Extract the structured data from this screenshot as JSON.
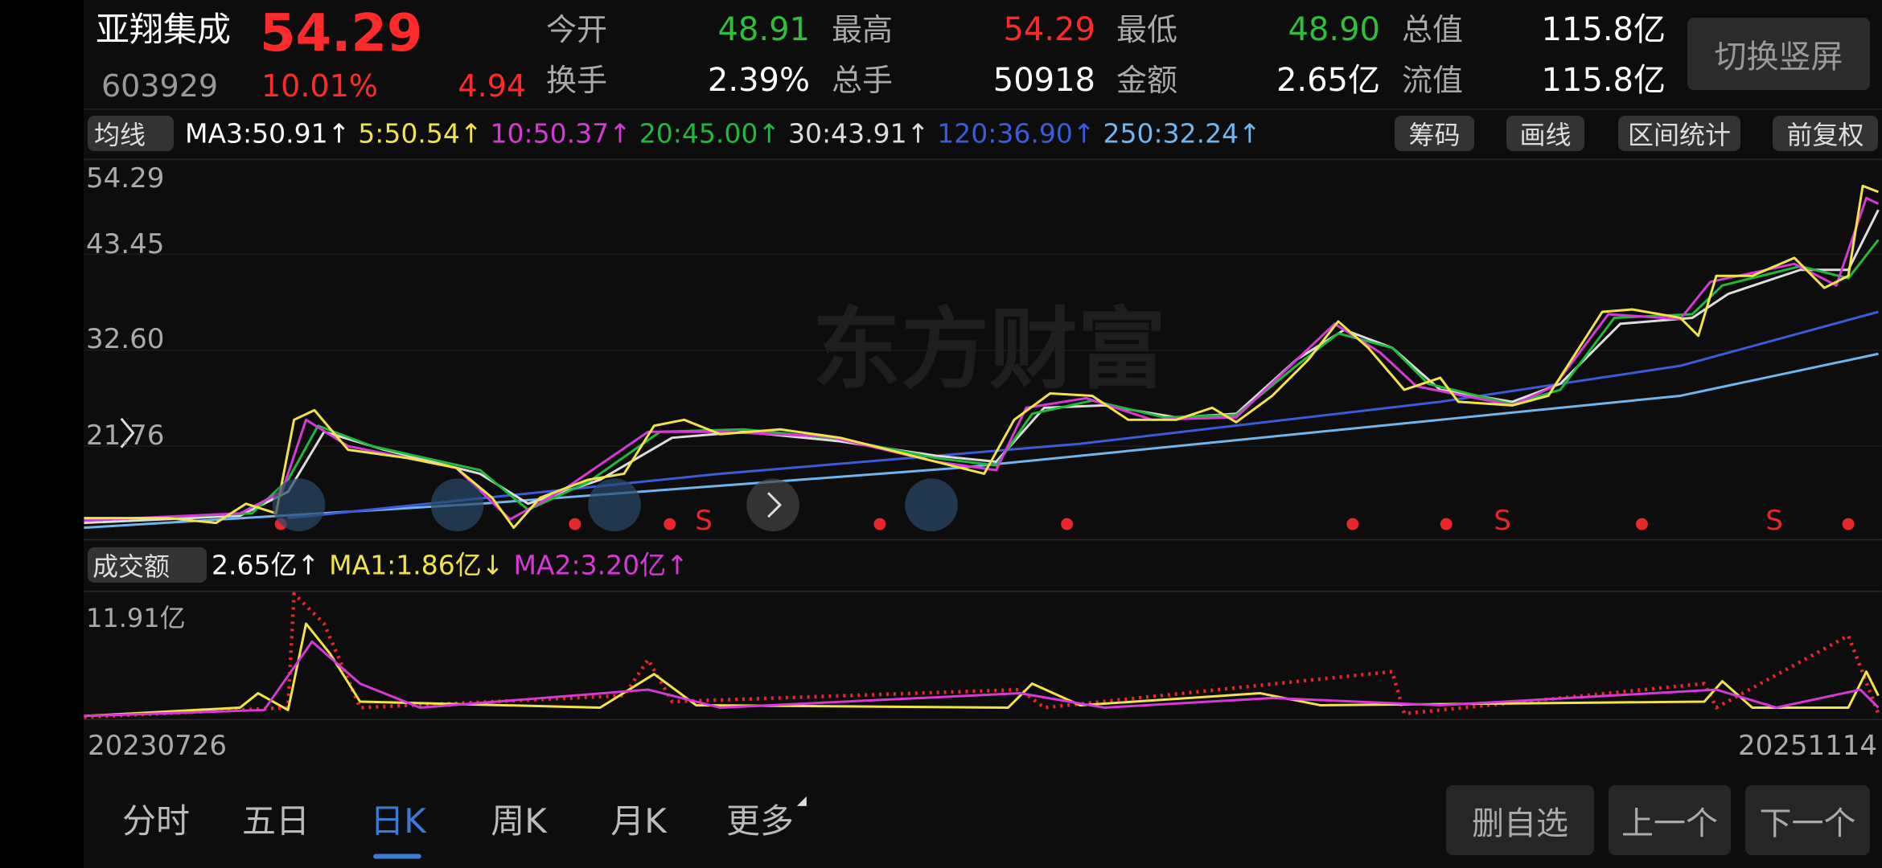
{
  "header": {
    "name": "亚翔集成",
    "price": "54.29",
    "code": "603929",
    "change_pct": "10.01%",
    "change": "4.94",
    "stats": [
      {
        "label": "今开",
        "value": "48.91"
      },
      {
        "label": "最高",
        "value": "54.29"
      },
      {
        "label": "最低",
        "value": "48.90"
      },
      {
        "label": "总值",
        "value": "115.8亿"
      },
      {
        "label": "换手",
        "value": "2.39%"
      },
      {
        "label": "总手",
        "value": "50918"
      },
      {
        "label": "金额",
        "value": "2.65亿"
      },
      {
        "label": "流值",
        "value": "115.8亿"
      }
    ]
  },
  "switch_button": "切换竖屏",
  "ma_bar": {
    "selector": "均线",
    "items": [
      "MA3:50.91↑",
      "5:50.54↑",
      "10:50.37↑",
      "20:45.00↑",
      "30:43.91↑",
      "120:36.90↑",
      "250:32.24↑"
    ],
    "tools": [
      "筹码",
      "画线",
      "区间统计",
      "前复权"
    ]
  },
  "price_axis": {
    "labels": [
      "54.29",
      "43.45",
      "32.60",
      "21.76"
    ]
  },
  "watermark": "东方财富",
  "markers": [
    "S",
    "S",
    "S"
  ],
  "volume_bar": {
    "selector": "成交额",
    "items": [
      "2.65亿↑",
      "MA1:1.86亿↓",
      "MA2:3.20亿↑"
    ]
  },
  "volume_axis_label": "11.91亿",
  "dates": {
    "start": "20230726",
    "end": "20251114"
  },
  "tabs": [
    "分时",
    "五日",
    "日K",
    "周K",
    "月K",
    "更多"
  ],
  "buttons": [
    "删自选",
    "上一个",
    "下一个"
  ]
}
